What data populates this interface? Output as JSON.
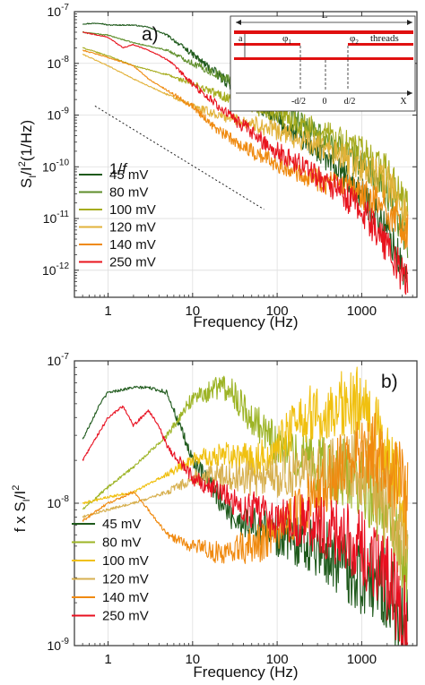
{
  "chart_data": [
    {
      "panel_label": "a)",
      "type": "line",
      "xlabel": "Frequency (Hz)",
      "ylabel_main": "S",
      "ylabel_sub": "I",
      "ylabel_mid": "/I",
      "ylabel_sup": "2",
      "ylabel_tail": "(1/Hz)",
      "xscale": "log",
      "yscale": "log",
      "xlim": [
        0.4,
        4500
      ],
      "ylim": [
        3e-13,
        1e-07
      ],
      "xticks": [
        {
          "value": 1,
          "label": "1"
        },
        {
          "value": 10,
          "label": "10"
        },
        {
          "value": 100,
          "label": "100"
        },
        {
          "value": 1000,
          "label": "1000"
        }
      ],
      "yticks": [
        {
          "value": 1e-12,
          "base": "10",
          "exp": "-12"
        },
        {
          "value": 1e-11,
          "base": "10",
          "exp": "-11"
        },
        {
          "value": 1e-10,
          "base": "10",
          "exp": "-10"
        },
        {
          "value": 1e-09,
          "base": "10",
          "exp": "-9"
        },
        {
          "value": 1e-08,
          "base": "10",
          "exp": "-8"
        },
        {
          "value": 1e-07,
          "base": "10",
          "exp": "-7"
        }
      ],
      "grid": true,
      "legend_position": "bottom-left",
      "reference_line": {
        "label_main": "1/",
        "label_italic": "f",
        "x": [
          0.7,
          70
        ],
        "y": [
          1.5e-09,
          1.5e-11
        ]
      },
      "series": [
        {
          "name": "45 mV",
          "color": "#1f5a1c",
          "points": [
            [
              0.5,
              5.8e-08
            ],
            [
              0.8,
              6e-08
            ],
            [
              1,
              5.5e-08
            ],
            [
              2,
              5.5e-08
            ],
            [
              3,
              5e-08
            ],
            [
              5,
              3.5e-08
            ],
            [
              10,
              1.5e-08
            ],
            [
              20,
              6e-09
            ],
            [
              40,
              2.5e-09
            ],
            [
              100,
              8e-10
            ],
            [
              300,
              2e-10
            ],
            [
              1000,
              3e-11
            ],
            [
              2000,
              6e-12
            ],
            [
              3500,
              6e-13
            ]
          ]
        },
        {
          "name": "80 mV",
          "color": "#5e8e2a",
          "points": [
            [
              0.5,
              4e-08
            ],
            [
              1,
              3.5e-08
            ],
            [
              2,
              2.5e-08
            ],
            [
              5,
              1.8e-08
            ],
            [
              10,
              1e-08
            ],
            [
              20,
              6e-09
            ],
            [
              50,
              3e-09
            ],
            [
              100,
              1.5e-09
            ],
            [
              300,
              4e-10
            ],
            [
              1000,
              1.2e-10
            ],
            [
              2000,
              3e-11
            ],
            [
              3500,
              4e-12
            ]
          ]
        },
        {
          "name": "100 mV",
          "color": "#a6ac1e",
          "points": [
            [
              0.5,
              2e-08
            ],
            [
              1,
              1.4e-08
            ],
            [
              2,
              9e-09
            ],
            [
              5,
              6e-09
            ],
            [
              10,
              4e-09
            ],
            [
              20,
              2.5e-09
            ],
            [
              50,
              1.5e-09
            ],
            [
              100,
              1e-09
            ],
            [
              300,
              5e-10
            ],
            [
              1000,
              2e-10
            ],
            [
              2000,
              8e-11
            ],
            [
              3500,
              1.5e-11
            ]
          ]
        },
        {
          "name": "120 mV",
          "color": "#e2b23a",
          "points": [
            [
              0.5,
              1.5e-08
            ],
            [
              1,
              9e-09
            ],
            [
              2,
              5e-09
            ],
            [
              5,
              2.5e-09
            ],
            [
              10,
              1.5e-09
            ],
            [
              20,
              1e-09
            ],
            [
              50,
              7e-10
            ],
            [
              100,
              5e-10
            ],
            [
              300,
              2.5e-10
            ],
            [
              1000,
              1e-10
            ],
            [
              2000,
              5e-11
            ],
            [
              3500,
              1e-11
            ]
          ]
        },
        {
          "name": "140 mV",
          "color": "#ef8a10",
          "points": [
            [
              0.5,
              1.8e-08
            ],
            [
              1,
              1.3e-08
            ],
            [
              2,
              9e-09
            ],
            [
              3,
              5e-09
            ],
            [
              5,
              3e-09
            ],
            [
              10,
              1.5e-09
            ],
            [
              20,
              5e-10
            ],
            [
              50,
              2e-10
            ],
            [
              100,
              1.2e-10
            ],
            [
              300,
              6e-11
            ],
            [
              1000,
              2.8e-11
            ],
            [
              2000,
              1.5e-11
            ],
            [
              3500,
              5e-12
            ]
          ]
        },
        {
          "name": "250 mV",
          "color": "#e8141e",
          "points": [
            [
              0.5,
              4e-08
            ],
            [
              1,
              3.2e-08
            ],
            [
              1.5,
              2e-08
            ],
            [
              2,
              2.3e-08
            ],
            [
              3,
              1.8e-08
            ],
            [
              5,
              1.2e-08
            ],
            [
              10,
              4e-09
            ],
            [
              20,
              1.5e-09
            ],
            [
              50,
              4.5e-10
            ],
            [
              100,
              2e-10
            ],
            [
              300,
              7e-11
            ],
            [
              1000,
              1.5e-11
            ],
            [
              2000,
              3e-12
            ],
            [
              3500,
              5e-13
            ]
          ]
        }
      ],
      "inset": {
        "L": "L",
        "a": "a",
        "phi1_base": "φ",
        "phi1_sub": "1",
        "phi2_base": "φ",
        "phi2_sub": "2",
        "threads": "threads",
        "minus_d2": "-d/2",
        "zero": "0",
        "plus_d2": "d/2",
        "X": "X"
      }
    },
    {
      "panel_label": "b)",
      "type": "line",
      "xlabel": "Frequency (Hz)",
      "ylabel_pre": "f x S",
      "ylabel_sub": "I",
      "ylabel_mid": "/I",
      "ylabel_sup": "2",
      "xscale": "log",
      "yscale": "log",
      "xlim": [
        0.4,
        4500
      ],
      "ylim": [
        1e-09,
        1e-07
      ],
      "xticks": [
        {
          "value": 1,
          "label": "1"
        },
        {
          "value": 10,
          "label": "10"
        },
        {
          "value": 100,
          "label": "100"
        },
        {
          "value": 1000,
          "label": "1000"
        }
      ],
      "yticks": [
        {
          "value": 1e-09,
          "base": "10",
          "exp": "-9"
        },
        {
          "value": 1e-08,
          "base": "10",
          "exp": "-8"
        },
        {
          "value": 1e-07,
          "base": "10",
          "exp": "-7"
        }
      ],
      "grid": true,
      "legend_position": "bottom-left",
      "series": [
        {
          "name": "45 mV",
          "color": "#1f5a1c",
          "points": [
            [
              0.5,
              2.8e-08
            ],
            [
              0.8,
              5e-08
            ],
            [
              1,
              6e-08
            ],
            [
              2,
              6.5e-08
            ],
            [
              3,
              6.5e-08
            ],
            [
              5,
              6e-08
            ],
            [
              7,
              3.5e-08
            ],
            [
              10,
              2e-08
            ],
            [
              30,
              8e-09
            ],
            [
              100,
              6e-09
            ],
            [
              300,
              5e-09
            ],
            [
              1000,
              3e-09
            ],
            [
              2000,
              2.5e-09
            ],
            [
              3500,
              1.2e-09
            ]
          ]
        },
        {
          "name": "80 mV",
          "color": "#9db426",
          "points": [
            [
              0.5,
              9e-09
            ],
            [
              1,
              1.3e-08
            ],
            [
              2,
              1.8e-08
            ],
            [
              5,
              3e-08
            ],
            [
              10,
              5.5e-08
            ],
            [
              20,
              6.5e-08
            ],
            [
              30,
              6e-08
            ],
            [
              50,
              4e-08
            ],
            [
              100,
              2.5e-08
            ],
            [
              300,
              1.8e-08
            ],
            [
              1000,
              1.5e-08
            ],
            [
              2000,
              8e-09
            ],
            [
              3500,
              3e-09
            ]
          ]
        },
        {
          "name": "100 mV",
          "color": "#f0c010",
          "points": [
            [
              0.5,
              1e-08
            ],
            [
              1,
              1.1e-08
            ],
            [
              2,
              1.2e-08
            ],
            [
              5,
              1.6e-08
            ],
            [
              10,
              2e-08
            ],
            [
              20,
              2.2e-08
            ],
            [
              50,
              2e-08
            ],
            [
              100,
              2.5e-08
            ],
            [
              200,
              4e-08
            ],
            [
              500,
              5e-08
            ],
            [
              1000,
              5e-08
            ],
            [
              2000,
              2e-08
            ],
            [
              3500,
              8e-09
            ]
          ]
        },
        {
          "name": "120 mV",
          "color": "#d7b050",
          "points": [
            [
              0.5,
              8e-09
            ],
            [
              1,
              9e-09
            ],
            [
              2,
              1e-08
            ],
            [
              5,
              1.2e-08
            ],
            [
              10,
              1.5e-08
            ],
            [
              20,
              1.6e-08
            ],
            [
              50,
              1.5e-08
            ],
            [
              100,
              1.6e-08
            ],
            [
              300,
              1.7e-08
            ],
            [
              1000,
              1.8e-08
            ],
            [
              2000,
              1e-08
            ],
            [
              3500,
              4e-09
            ]
          ]
        },
        {
          "name": "140 mV",
          "color": "#f08a10",
          "points": [
            [
              0.5,
              7.5e-09
            ],
            [
              1,
              1e-08
            ],
            [
              2,
              1.2e-08
            ],
            [
              3,
              9e-09
            ],
            [
              5,
              6e-09
            ],
            [
              10,
              5e-09
            ],
            [
              20,
              4.5e-09
            ],
            [
              50,
              5e-09
            ],
            [
              100,
              6e-09
            ],
            [
              300,
              1.2e-08
            ],
            [
              1000,
              2.5e-08
            ],
            [
              2000,
              2e-08
            ],
            [
              3500,
              1e-08
            ]
          ]
        },
        {
          "name": "250 mV",
          "color": "#e81020",
          "points": [
            [
              0.5,
              2e-08
            ],
            [
              0.8,
              3.2e-08
            ],
            [
              1,
              4e-08
            ],
            [
              1.5,
              4.8e-08
            ],
            [
              2,
              3.5e-08
            ],
            [
              3,
              4.5e-08
            ],
            [
              4,
              3.5e-08
            ],
            [
              5,
              2.5e-08
            ],
            [
              7,
              2e-08
            ],
            [
              10,
              1.5e-08
            ],
            [
              20,
              1.2e-08
            ],
            [
              50,
              9e-09
            ],
            [
              100,
              8e-09
            ],
            [
              300,
              7e-09
            ],
            [
              1000,
              5e-09
            ],
            [
              2000,
              3e-09
            ],
            [
              3500,
              1.5e-09
            ]
          ]
        }
      ]
    }
  ]
}
